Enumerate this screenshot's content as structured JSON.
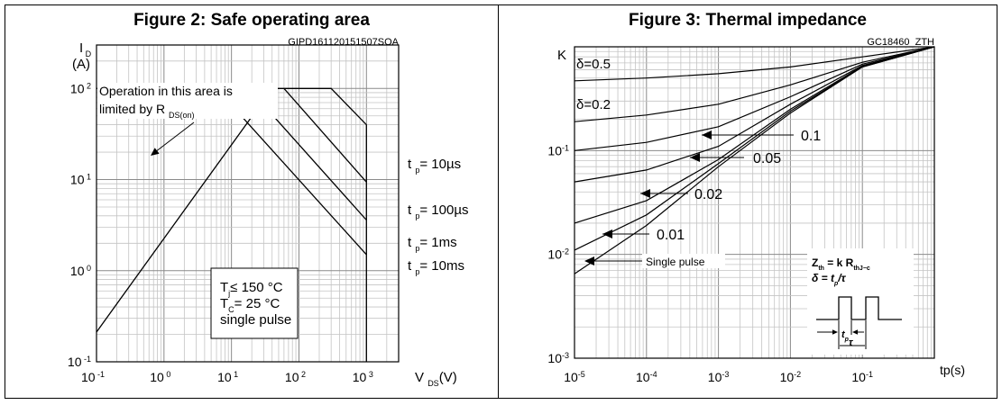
{
  "chart_data": [
    {
      "type": "line",
      "title": "Figure 2: Safe operating area",
      "code": "GIPD161120151507SOA",
      "x_scale": "log",
      "y_scale": "log",
      "xlim": [
        0.1,
        3000
      ],
      "ylim": [
        0.1,
        300
      ],
      "xlabel": {
        "main": "V",
        "sub": "DS",
        "unit": "(V)"
      },
      "ylabel": {
        "main": "I",
        "sub": "D",
        "unit": "(A)"
      },
      "x_ticks": [
        {
          "base": "10",
          "exp": "-1"
        },
        {
          "base": "10",
          "exp": "0"
        },
        {
          "base": "10",
          "exp": "1"
        },
        {
          "base": "10",
          "exp": "2"
        },
        {
          "base": "10",
          "exp": "3"
        }
      ],
      "y_ticks": [
        {
          "base": "10",
          "exp": "-1"
        },
        {
          "base": "10",
          "exp": "0"
        },
        {
          "base": "10",
          "exp": "1"
        },
        {
          "base": "10",
          "exp": "2"
        }
      ],
      "rds_limit": [
        {
          "x": 0.1,
          "y": 0.212
        },
        {
          "x": 40,
          "y": 100
        }
      ],
      "series": [
        {
          "label_main": "t",
          "label_sub": "p",
          "label_rest": "= 10µs",
          "points": [
            {
              "x": 0.1,
              "y": 100
            },
            {
              "x": 300,
              "y": 100
            },
            {
              "x": 1000,
              "y": 40
            },
            {
              "x": 1000,
              "y": 0.1
            }
          ]
        },
        {
          "label_main": "t",
          "label_sub": "p",
          "label_rest": "= 100µs",
          "points": [
            {
              "x": 60,
              "y": 100
            },
            {
              "x": 1000,
              "y": 9.4
            }
          ]
        },
        {
          "label_main": "t",
          "label_sub": "p",
          "label_rest": "= 1ms",
          "points": [
            {
              "x": 18,
              "y": 100
            },
            {
              "x": 1000,
              "y": 3.6
            }
          ]
        },
        {
          "label_main": "t",
          "label_sub": "p",
          "label_rest": "= 10ms",
          "points": [
            {
              "x": 6,
              "y": 100
            },
            {
              "x": 1000,
              "y": 1.5
            }
          ]
        }
      ],
      "annotations": {
        "limit_line1": "Operation in this area is",
        "limit_line2_prefix": "limited by R",
        "limit_line2_sub": "DS(on)",
        "cond_tj_main": "T",
        "cond_tj_sub": "j",
        "cond_tj_rest": "≤ 150 °C",
        "cond_tc_main": "T",
        "cond_tc_sub": "C",
        "cond_tc_rest": "= 25 °C",
        "cond_pulse": "single pulse"
      }
    },
    {
      "type": "line",
      "title": "Figure 3: Thermal impedance",
      "code": "GC18460_ZTH",
      "x_scale": "log",
      "y_scale": "log",
      "xlim": [
        1e-05,
        1
      ],
      "ylim": [
        0.001,
        1
      ],
      "xlabel": "tp(s)",
      "ylabel": "K",
      "x_ticks": [
        {
          "base": "10",
          "exp": "-5"
        },
        {
          "base": "10",
          "exp": "-4"
        },
        {
          "base": "10",
          "exp": "-3"
        },
        {
          "base": "10",
          "exp": "-2"
        },
        {
          "base": "10",
          "exp": "-1"
        }
      ],
      "y_ticks": [
        {
          "base": "10",
          "exp": "-3"
        },
        {
          "base": "10",
          "exp": "-2"
        },
        {
          "base": "10",
          "exp": "-1"
        }
      ],
      "series": [
        {
          "label": "δ=0.5",
          "points": [
            {
              "x": 1e-05,
              "y": 0.47
            },
            {
              "x": 0.0001,
              "y": 0.5
            },
            {
              "x": 0.001,
              "y": 0.55
            },
            {
              "x": 0.01,
              "y": 0.64
            },
            {
              "x": 0.1,
              "y": 0.8
            },
            {
              "x": 1,
              "y": 1
            }
          ]
        },
        {
          "label": "δ=0.2",
          "points": [
            {
              "x": 1e-05,
              "y": 0.19
            },
            {
              "x": 0.0001,
              "y": 0.22
            },
            {
              "x": 0.001,
              "y": 0.28
            },
            {
              "x": 0.01,
              "y": 0.43
            },
            {
              "x": 0.1,
              "y": 0.71
            },
            {
              "x": 1,
              "y": 1
            }
          ]
        },
        {
          "label": "0.1",
          "points": [
            {
              "x": 1e-05,
              "y": 0.1
            },
            {
              "x": 0.0001,
              "y": 0.12
            },
            {
              "x": 0.001,
              "y": 0.17
            },
            {
              "x": 0.01,
              "y": 0.33
            },
            {
              "x": 0.1,
              "y": 0.68
            },
            {
              "x": 1,
              "y": 1
            }
          ]
        },
        {
          "label": "0.05",
          "points": [
            {
              "x": 1e-05,
              "y": 0.05
            },
            {
              "x": 0.0001,
              "y": 0.065
            },
            {
              "x": 0.001,
              "y": 0.11
            },
            {
              "x": 0.01,
              "y": 0.28
            },
            {
              "x": 0.1,
              "y": 0.66
            },
            {
              "x": 1,
              "y": 1
            }
          ]
        },
        {
          "label": "0.02",
          "points": [
            {
              "x": 1e-05,
              "y": 0.02
            },
            {
              "x": 0.0001,
              "y": 0.033
            },
            {
              "x": 0.001,
              "y": 0.082
            },
            {
              "x": 0.01,
              "y": 0.25
            },
            {
              "x": 0.1,
              "y": 0.65
            },
            {
              "x": 1,
              "y": 1
            }
          ]
        },
        {
          "label": "0.01",
          "points": [
            {
              "x": 1e-05,
              "y": 0.011
            },
            {
              "x": 0.0001,
              "y": 0.024
            },
            {
              "x": 0.001,
              "y": 0.075
            },
            {
              "x": 0.01,
              "y": 0.24
            },
            {
              "x": 0.1,
              "y": 0.64
            },
            {
              "x": 1,
              "y": 1
            }
          ]
        },
        {
          "label": "Single pulse",
          "points": [
            {
              "x": 1e-05,
              "y": 0.0065
            },
            {
              "x": 0.0001,
              "y": 0.019
            },
            {
              "x": 0.001,
              "y": 0.07
            },
            {
              "x": 0.01,
              "y": 0.23
            },
            {
              "x": 0.1,
              "y": 0.64
            },
            {
              "x": 1,
              "y": 1
            }
          ]
        }
      ],
      "legend": {
        "formula1_main": "Z",
        "formula1_sub": "th",
        "formula1_mid": " = k R",
        "formula1_sub2": "thJ−c",
        "formula2_pre": "δ = t",
        "formula2_sub": "p",
        "formula2_post": "/τ",
        "pulse_tp": "t",
        "pulse_tp_sub": "p",
        "pulse_tau": "τ"
      }
    }
  ]
}
